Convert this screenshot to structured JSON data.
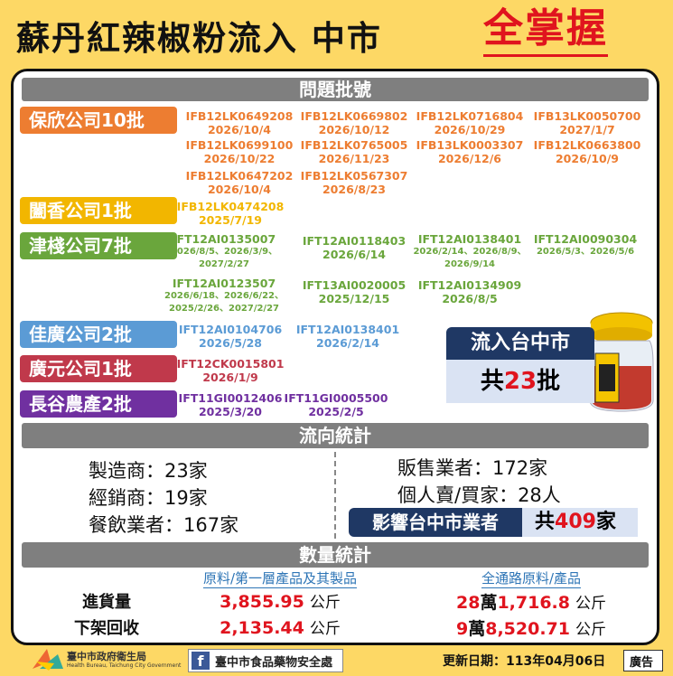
{
  "header": {
    "title": "蘇丹紅辣椒粉流入 中市",
    "highlight": "全掌握"
  },
  "batches": {
    "title": "問題批號",
    "companies": [
      {
        "name": "保欣公司10批",
        "color": "#ed7d31",
        "items": [
          {
            "code": "IFB12LK0649208",
            "dates": [
              "2026/10/4"
            ]
          },
          {
            "code": "IFB12LK0669802",
            "dates": [
              "2026/10/12"
            ]
          },
          {
            "code": "IFB12LK0716804",
            "dates": [
              "2026/10/29"
            ]
          },
          {
            "code": "IFB13LK0050700",
            "dates": [
              "2027/1/7"
            ]
          },
          {
            "code": "IFB12LK0699100",
            "dates": [
              "2026/10/22"
            ]
          },
          {
            "code": "IFB12LK0765005",
            "dates": [
              "2026/11/23"
            ]
          },
          {
            "code": "IFB13LK0003307",
            "dates": [
              "2026/12/6"
            ]
          },
          {
            "code": "IFB12LK0663800",
            "dates": [
              "2026/10/9"
            ]
          },
          {
            "code": "IFB12LK0647202",
            "dates": [
              "2026/10/4"
            ]
          },
          {
            "code": "IFB12LK0567307",
            "dates": [
              "2026/8/23"
            ]
          }
        ]
      },
      {
        "name": "闔香公司1批",
        "color": "#f2b600",
        "items": [
          {
            "code": "IFB12LK0474208",
            "dates": [
              "2025/7/19"
            ]
          }
        ]
      },
      {
        "name": "津棧公司7批",
        "color": "#6aa63c",
        "items": [
          {
            "code": "IFT12AI0135007",
            "dates": [
              "2026/8/5、2026/3/9、",
              "2027/2/27"
            ]
          },
          {
            "code": "IFT12AI0118403",
            "dates": [
              "2026/6/14"
            ]
          },
          {
            "code": "IFT12AI0138401",
            "dates": [
              "2026/2/14、2026/8/9、",
              "2026/9/14"
            ]
          },
          {
            "code": "IFT12AI0090304",
            "dates": [
              "2026/5/3、2026/5/6"
            ]
          },
          {
            "code": "IFT12AI0123507",
            "dates": [
              "2026/6/18、2026/6/22、",
              "2025/2/26、2027/2/27"
            ]
          },
          {
            "code": "IFT13AI0020005",
            "dates": [
              "2025/12/15"
            ]
          },
          {
            "code": "IFT12AI0134909",
            "dates": [
              "2026/8/5"
            ]
          }
        ]
      },
      {
        "name": "佳廣公司2批",
        "color": "#5b9bd5",
        "items": [
          {
            "code": "IFT12AI0104706",
            "dates": [
              "2026/5/28"
            ]
          },
          {
            "code": "IFT12AI0138401",
            "dates": [
              "2026/2/14"
            ]
          }
        ]
      },
      {
        "name": "廣元公司1批",
        "color": "#c0394b",
        "items": [
          {
            "code": "IFT12CK0015801",
            "dates": [
              "2026/1/9"
            ]
          }
        ]
      },
      {
        "name": "長谷農產2批",
        "color": "#7030a0",
        "items": [
          {
            "code": "IFT11GI0012406",
            "dates": [
              "2025/3/20"
            ]
          },
          {
            "code": "IFT11GI0005500",
            "dates": [
              "2025/2/5"
            ]
          }
        ]
      }
    ]
  },
  "inflow": {
    "label": "流入台中市",
    "prefix": "共",
    "count": "23",
    "unit": "批"
  },
  "distribution": {
    "title": "流向統計",
    "left": [
      "製造商：23家",
      "經銷商：19家",
      "餐飲業者：167家"
    ],
    "right": [
      "販售業者：172家",
      "個人賣/買家：28人"
    ],
    "impact": {
      "label": "影響台中市業者",
      "prefix": "共",
      "count": "409",
      "unit": "家"
    }
  },
  "quantity": {
    "title": "數量統計",
    "columns": [
      "原料/第一層產品及其製品",
      "全通路原料/產品"
    ],
    "rows": [
      {
        "label": "進貨量",
        "cells": [
          {
            "parts": [
              "3,855.95"
            ],
            "unit": "公斤"
          },
          {
            "parts": [
              "28",
              "萬",
              "1,716.8"
            ],
            "unit": "公斤"
          }
        ]
      },
      {
        "label": "下架回收",
        "cells": [
          {
            "parts": [
              "2,135.44"
            ],
            "unit": "公斤"
          },
          {
            "parts": [
              "9",
              "萬",
              "8,520.71"
            ],
            "unit": "公斤"
          }
        ]
      }
    ]
  },
  "footer": {
    "agency": "臺中市政府衛生局",
    "agency_en": "Health Bureau, Taichung City Government",
    "facebook": "臺中市食品藥物安全處",
    "updated": "更新日期：113年04月06日",
    "ad": "廣告"
  }
}
